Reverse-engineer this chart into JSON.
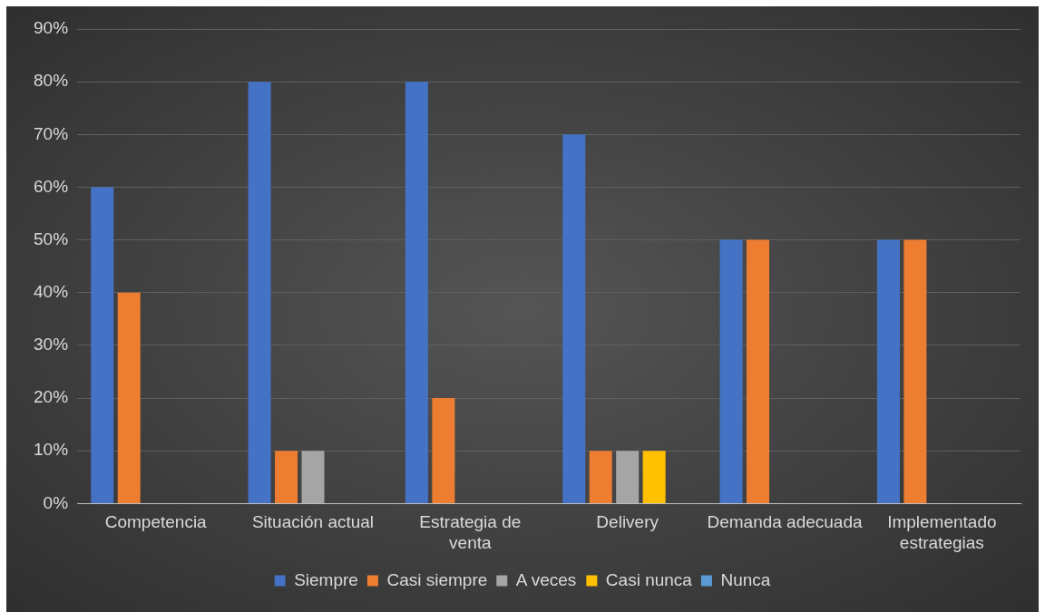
{
  "chart_data": {
    "type": "bar",
    "categories": [
      "Competencia",
      "Situación actual",
      "Estrategia de venta",
      "Delivery",
      "Demanda adecuada",
      "Implementado estrategias"
    ],
    "series": [
      {
        "name": "Siempre",
        "color": "#4472c4",
        "values": [
          60,
          80,
          80,
          70,
          50,
          50
        ]
      },
      {
        "name": "Casi siempre",
        "color": "#ed7d31",
        "values": [
          40,
          10,
          20,
          10,
          50,
          50
        ]
      },
      {
        "name": "A veces",
        "color": "#a5a5a5",
        "values": [
          0,
          10,
          0,
          10,
          0,
          0
        ]
      },
      {
        "name": "Casi nunca",
        "color": "#ffc000",
        "values": [
          0,
          0,
          0,
          10,
          0,
          0
        ]
      },
      {
        "name": "Nunca",
        "color": "#5b9bd5",
        "values": [
          0,
          0,
          0,
          0,
          0,
          0
        ]
      }
    ],
    "ylim": [
      0,
      90
    ],
    "yticks": [
      {
        "value": 0,
        "label": "0%"
      },
      {
        "value": 10,
        "label": "10%"
      },
      {
        "value": 20,
        "label": "20%"
      },
      {
        "value": 30,
        "label": "30%"
      },
      {
        "value": 40,
        "label": "40%"
      },
      {
        "value": 50,
        "label": "50%"
      },
      {
        "value": 60,
        "label": "60%"
      },
      {
        "value": 70,
        "label": "70%"
      },
      {
        "value": 80,
        "label": "80%"
      },
      {
        "value": 90,
        "label": "90%"
      }
    ],
    "grid": "y",
    "legend": "bottom"
  }
}
